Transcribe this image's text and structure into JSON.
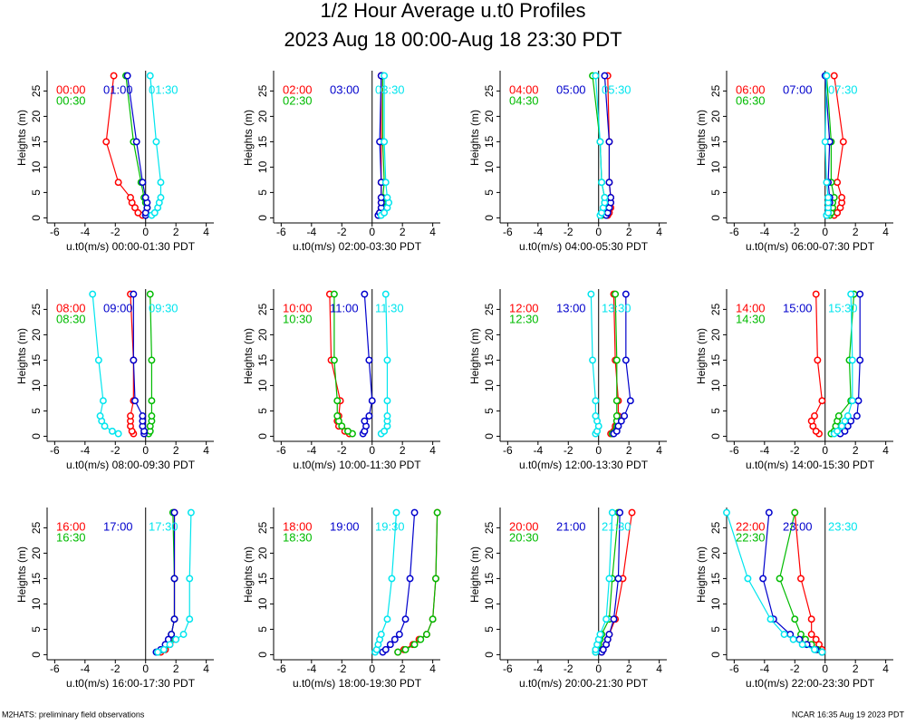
{
  "title": "1/2 Hour Average u.t0 Profiles",
  "subtitle": "2023 Aug 18 00:00-Aug 18 23:30 PDT",
  "footer_left": "M2HATS: preliminary field observations",
  "footer_right": "NCAR 16:35 Aug 19 2023 PDT",
  "chart_data": [
    {
      "type": "line",
      "xlabel": "u.t0(m/s) 00:00-01:30 PDT",
      "ylabel": "Heights (m)",
      "xlim": [
        -6.5,
        4.5
      ],
      "ylim": [
        -1,
        29
      ],
      "xticks": [
        -6,
        -4,
        -2,
        0,
        2,
        4
      ],
      "yticks": [
        0,
        5,
        10,
        15,
        20,
        25
      ],
      "y": [
        0.5,
        1,
        2,
        3,
        4,
        7,
        15,
        28
      ],
      "series": [
        {
          "name": "00:00",
          "color": "#ff0000",
          "x": [
            -0.2,
            -0.5,
            -0.7,
            -0.9,
            -1.0,
            -1.8,
            -2.6,
            -2.1
          ]
        },
        {
          "name": "00:30",
          "color": "#00bb00",
          "x": [
            0,
            0,
            0.1,
            0,
            -0.1,
            -0.3,
            -0.8,
            -1.3
          ]
        },
        {
          "name": "01:00",
          "color": "#0000cc",
          "x": [
            0,
            0,
            0.1,
            0.1,
            0,
            -0.2,
            -0.6,
            -1.2
          ]
        },
        {
          "name": "01:30",
          "color": "#00e5ee",
          "x": [
            0.4,
            0.6,
            0.8,
            0.9,
            1.0,
            1.0,
            0.7,
            0.3
          ]
        }
      ]
    },
    {
      "type": "line",
      "xlabel": "u.t0(m/s) 02:00-03:30 PDT",
      "ylabel": "Heights (m)",
      "xlim": [
        -6.5,
        4.5
      ],
      "ylim": [
        -1,
        29
      ],
      "xticks": [
        -6,
        -4,
        -2,
        0,
        2,
        4
      ],
      "yticks": [
        0,
        5,
        10,
        15,
        20,
        25
      ],
      "y": [
        0.5,
        1,
        2,
        3,
        4,
        7,
        15,
        28
      ],
      "series": [
        {
          "name": "02:00",
          "color": "#ff0000",
          "x": [
            0.4,
            0.5,
            0.6,
            0.6,
            0.6,
            0.6,
            0.6,
            0.6
          ]
        },
        {
          "name": "02:30",
          "color": "#00bb00",
          "x": [
            0.5,
            0.6,
            0.7,
            0.7,
            0.7,
            0.8,
            0.7,
            0.7
          ]
        },
        {
          "name": "03:00",
          "color": "#0000cc",
          "x": [
            0.4,
            0.5,
            0.6,
            0.6,
            0.6,
            0.6,
            0.5,
            0.6
          ]
        },
        {
          "name": "03:30",
          "color": "#00e5ee",
          "x": [
            0.6,
            0.8,
            1.0,
            1.1,
            1.0,
            0.9,
            0.8,
            0.8
          ]
        }
      ]
    },
    {
      "type": "line",
      "xlabel": "u.t0(m/s) 04:00-05:30 PDT",
      "ylabel": "Heights (m)",
      "xlim": [
        -6.5,
        4.5
      ],
      "ylim": [
        -1,
        29
      ],
      "xticks": [
        -6,
        -4,
        -2,
        0,
        2,
        4
      ],
      "yticks": [
        0,
        5,
        10,
        15,
        20,
        25
      ],
      "y": [
        0.5,
        1,
        2,
        3,
        4,
        7,
        15,
        28
      ],
      "series": [
        {
          "name": "04:00",
          "color": "#ff0000",
          "x": [
            0.6,
            0.7,
            0.8,
            0.8,
            0.8,
            0.7,
            0.7,
            0.6
          ]
        },
        {
          "name": "04:30",
          "color": "#00bb00",
          "x": [
            0.2,
            0.3,
            0.4,
            0.4,
            0.4,
            0.2,
            0.1,
            -0.4
          ]
        },
        {
          "name": "05:00",
          "color": "#0000cc",
          "x": [
            0.5,
            0.6,
            0.7,
            0.8,
            0.8,
            0.7,
            0.7,
            0.4
          ]
        },
        {
          "name": "05:30",
          "color": "#00e5ee",
          "x": [
            0.1,
            0.2,
            0.3,
            0.4,
            0.4,
            0.2,
            0.1,
            -0.2
          ]
        }
      ]
    },
    {
      "type": "line",
      "xlabel": "u.t0(m/s) 06:00-07:30 PDT",
      "ylabel": "Heights (m)",
      "xlim": [
        -6.5,
        4.5
      ],
      "ylim": [
        -1,
        29
      ],
      "xticks": [
        -6,
        -4,
        -2,
        0,
        2,
        4
      ],
      "yticks": [
        0,
        5,
        10,
        15,
        20,
        25
      ],
      "y": [
        0.5,
        1,
        2,
        3,
        4,
        7,
        15,
        28
      ],
      "series": [
        {
          "name": "06:00",
          "color": "#ff0000",
          "x": [
            0.6,
            0.8,
            1.0,
            1.1,
            1.1,
            0.8,
            1.2,
            0.6
          ]
        },
        {
          "name": "06:30",
          "color": "#00bb00",
          "x": [
            0.3,
            0.4,
            0.5,
            0.5,
            0.6,
            0.4,
            0.4,
            0.1
          ]
        },
        {
          "name": "07:00",
          "color": "#0000cc",
          "x": [
            0.1,
            0.2,
            0.2,
            0.3,
            0.3,
            0.2,
            0.3,
            0
          ]
        },
        {
          "name": "07:30",
          "color": "#00e5ee",
          "x": [
            0.1,
            0.2,
            0.2,
            0.2,
            0.2,
            0.1,
            0,
            0.1
          ]
        }
      ]
    },
    {
      "type": "line",
      "xlabel": "u.t0(m/s) 08:00-09:30 PDT",
      "ylabel": "Heights (m)",
      "xlim": [
        -6.5,
        4.5
      ],
      "ylim": [
        -1,
        29
      ],
      "xticks": [
        -6,
        -4,
        -2,
        0,
        2,
        4
      ],
      "yticks": [
        0,
        5,
        10,
        15,
        20,
        25
      ],
      "y": [
        0.5,
        1,
        2,
        3,
        4,
        7,
        15,
        28
      ],
      "series": [
        {
          "name": "08:00",
          "color": "#ff0000",
          "x": [
            -0.8,
            -0.9,
            -1.0,
            -1.0,
            -1.0,
            -0.8,
            -0.8,
            -1.0
          ]
        },
        {
          "name": "08:30",
          "color": "#00bb00",
          "x": [
            0.2,
            0.3,
            0.3,
            0.4,
            0.4,
            0.4,
            0.4,
            0.3
          ]
        },
        {
          "name": "09:00",
          "color": "#0000cc",
          "x": [
            -0.1,
            -0.1,
            -0.2,
            -0.2,
            -0.2,
            -0.7,
            -0.8,
            -0.8
          ]
        },
        {
          "name": "09:30",
          "color": "#00e5ee",
          "x": [
            -1.8,
            -2.2,
            -2.7,
            -2.9,
            -3.0,
            -2.8,
            -3.1,
            -3.5
          ]
        }
      ]
    },
    {
      "type": "line",
      "xlabel": "u.t0(m/s) 10:00-11:30 PDT",
      "ylabel": "Heights (m)",
      "xlim": [
        -6.5,
        4.5
      ],
      "ylim": [
        -1,
        29
      ],
      "xticks": [
        -6,
        -4,
        -2,
        0,
        2,
        4
      ],
      "yticks": [
        0,
        5,
        10,
        15,
        20,
        25
      ],
      "y": [
        0.5,
        1,
        2,
        3,
        4,
        7,
        15,
        28
      ],
      "series": [
        {
          "name": "10:00",
          "color": "#ff0000",
          "x": [
            -1.5,
            -1.8,
            -2.2,
            -2.3,
            -2.2,
            -2.1,
            -2.7,
            -2.8
          ]
        },
        {
          "name": "10:30",
          "color": "#00bb00",
          "x": [
            -1.3,
            -1.6,
            -2.0,
            -2.2,
            -2.3,
            -2.3,
            -2.5,
            -2.5
          ]
        },
        {
          "name": "11:00",
          "color": "#0000cc",
          "x": [
            -0.6,
            -0.5,
            -0.4,
            -0.5,
            -0.2,
            0,
            -0.2,
            -0.5
          ]
        },
        {
          "name": "11:30",
          "color": "#00e5ee",
          "x": [
            0.6,
            0.8,
            1.0,
            1.0,
            1.0,
            1.0,
            1.0,
            0.9
          ]
        }
      ]
    },
    {
      "type": "line",
      "xlabel": "u.t0(m/s) 12:00-13:30 PDT",
      "ylabel": "Heights (m)",
      "xlim": [
        -6.5,
        4.5
      ],
      "ylim": [
        -1,
        29
      ],
      "xticks": [
        -6,
        -4,
        -2,
        0,
        2,
        4
      ],
      "yticks": [
        0,
        5,
        10,
        15,
        20,
        25
      ],
      "y": [
        0.5,
        1,
        2,
        3,
        4,
        7,
        15,
        28
      ],
      "series": [
        {
          "name": "12:00",
          "color": "#ff0000",
          "x": [
            0.8,
            1.0,
            1.1,
            1.2,
            1.3,
            1.3,
            1.1,
            1.0
          ]
        },
        {
          "name": "12:30",
          "color": "#00bb00",
          "x": [
            0.9,
            1.1,
            1.2,
            1.2,
            1.2,
            1.2,
            1.2,
            1.1
          ]
        },
        {
          "name": "13:00",
          "color": "#0000cc",
          "x": [
            1.0,
            1.2,
            1.3,
            1.5,
            1.7,
            2.1,
            1.8,
            1.8
          ]
        },
        {
          "name": "13:30",
          "color": "#00e5ee",
          "x": [
            -0.2,
            -0.1,
            0,
            -0.1,
            -0.2,
            -0.2,
            -0.4,
            -0.5
          ]
        }
      ]
    },
    {
      "type": "line",
      "xlabel": "u.t0(m/s) 14:00-15:30 PDT",
      "ylabel": "Heights (m)",
      "xlim": [
        -6.5,
        4.5
      ],
      "ylim": [
        -1,
        29
      ],
      "xticks": [
        -6,
        -4,
        -2,
        0,
        2,
        4
      ],
      "yticks": [
        0,
        5,
        10,
        15,
        20,
        25
      ],
      "y": [
        0.5,
        1,
        2,
        3,
        4,
        7,
        15,
        28
      ],
      "series": [
        {
          "name": "14:00",
          "color": "#ff0000",
          "x": [
            -0.4,
            -0.6,
            -0.8,
            -0.9,
            -0.7,
            -0.2,
            -0.5,
            -0.6
          ]
        },
        {
          "name": "14:30",
          "color": "#00bb00",
          "x": [
            0.4,
            0.6,
            0.7,
            0.8,
            0.9,
            1.7,
            1.6,
            1.9
          ]
        },
        {
          "name": "15:00",
          "color": "#0000cc",
          "x": [
            1.0,
            1.3,
            1.5,
            1.7,
            2.1,
            2.2,
            2.3,
            2.3
          ]
        },
        {
          "name": "15:30",
          "color": "#00e5ee",
          "x": [
            0.6,
            0.8,
            1.1,
            1.3,
            1.5,
            1.8,
            1.8,
            1.7
          ]
        }
      ]
    },
    {
      "type": "line",
      "xlabel": "u.t0(m/s) 16:00-17:30 PDT",
      "ylabel": "Heights (m)",
      "xlim": [
        -6.5,
        4.5
      ],
      "ylim": [
        -1,
        29
      ],
      "xticks": [
        -6,
        -4,
        -2,
        0,
        2,
        4
      ],
      "yticks": [
        0,
        5,
        10,
        15,
        20,
        25
      ],
      "y": [
        0.5,
        1,
        2,
        3,
        4,
        7,
        15,
        28
      ],
      "series": [
        {
          "name": "16:00",
          "color": "#ff0000",
          "x": [
            1.0,
            1.3,
            1.6,
            1.8,
            1.7,
            1.9,
            1.9,
            1.9
          ]
        },
        {
          "name": "16:30",
          "color": "#00bb00",
          "x": [
            0.8,
            1.1,
            1.4,
            1.6,
            1.7,
            1.9,
            1.9,
            1.8
          ]
        },
        {
          "name": "17:00",
          "color": "#0000cc",
          "x": [
            0.7,
            1.0,
            1.3,
            1.5,
            1.7,
            1.9,
            1.9,
            1.9
          ]
        },
        {
          "name": "17:30",
          "color": "#00e5ee",
          "x": [
            0.8,
            1.2,
            1.6,
            2.0,
            2.5,
            2.9,
            2.9,
            3.0
          ]
        }
      ]
    },
    {
      "type": "line",
      "xlabel": "u.t0(m/s) 18:00-19:30 PDT",
      "ylabel": "Heights (m)",
      "xlim": [
        -6.5,
        4.5
      ],
      "ylim": [
        -1,
        29
      ],
      "xticks": [
        -6,
        -4,
        -2,
        0,
        2,
        4
      ],
      "yticks": [
        0,
        5,
        10,
        15,
        20,
        25
      ],
      "y": [
        0.5,
        1,
        2,
        3,
        4,
        7,
        15,
        28
      ],
      "series": [
        {
          "name": "18:00",
          "color": "#ff0000",
          "x": [
            1.7,
            2.1,
            2.7,
            3.1,
            3.6,
            4.0,
            4.2,
            4.3
          ]
        },
        {
          "name": "18:30",
          "color": "#00bb00",
          "x": [
            1.7,
            2.2,
            2.8,
            3.2,
            3.6,
            4.0,
            4.2,
            4.3
          ]
        },
        {
          "name": "19:00",
          "color": "#0000cc",
          "x": [
            0.7,
            0.9,
            1.2,
            1.5,
            1.8,
            2.2,
            2.5,
            2.8
          ]
        },
        {
          "name": "19:30",
          "color": "#00e5ee",
          "x": [
            0.2,
            0.3,
            0.4,
            0.5,
            0.6,
            1.0,
            1.3,
            1.6
          ]
        }
      ]
    },
    {
      "type": "line",
      "xlabel": "u.t0(m/s) 20:00-21:30 PDT",
      "ylabel": "Heights (m)",
      "xlim": [
        -6.5,
        4.5
      ],
      "ylim": [
        -1,
        29
      ],
      "xticks": [
        -6,
        -4,
        -2,
        0,
        2,
        4
      ],
      "yticks": [
        0,
        5,
        10,
        15,
        20,
        25
      ],
      "y": [
        0.5,
        1,
        2,
        3,
        4,
        7,
        15,
        28
      ],
      "series": [
        {
          "name": "20:00",
          "color": "#ff0000",
          "x": [
            0.2,
            0.3,
            0.5,
            0.6,
            0.7,
            1.1,
            1.6,
            2.2
          ]
        },
        {
          "name": "20:30",
          "color": "#00bb00",
          "x": [
            -0.2,
            -0.1,
            0,
            0.1,
            0.2,
            0.7,
            0.9,
            1.3
          ]
        },
        {
          "name": "21:00",
          "color": "#0000cc",
          "x": [
            0.2,
            0.3,
            0.5,
            0.6,
            0.7,
            1.0,
            1.3,
            1.4
          ]
        },
        {
          "name": "21:30",
          "color": "#00e5ee",
          "x": [
            -0.2,
            -0.2,
            -0.1,
            0,
            0.1,
            0.5,
            0.7,
            0.9
          ]
        }
      ]
    },
    {
      "type": "line",
      "xlabel": "u.t0(m/s) 22:00-23:30 PDT",
      "ylabel": "Heights (m)",
      "xlim": [
        -6.5,
        4.5
      ],
      "ylim": [
        -1,
        29
      ],
      "xticks": [
        -6,
        -4,
        -2,
        0,
        2,
        4
      ],
      "yticks": [
        0,
        5,
        10,
        15,
        20,
        25
      ],
      "y": [
        0.5,
        1,
        2,
        3,
        4,
        7,
        15,
        28
      ],
      "series": [
        {
          "name": "22:00",
          "color": "#ff0000",
          "x": [
            -0.2,
            -0.2,
            -0.4,
            -0.6,
            -0.9,
            -0.9,
            -1.6,
            -2.0
          ]
        },
        {
          "name": "22:30",
          "color": "#00bb00",
          "x": [
            -0.2,
            -0.5,
            -0.9,
            -1.3,
            -1.6,
            -2.0,
            -3.0,
            -2.0
          ]
        },
        {
          "name": "23:00",
          "color": "#0000cc",
          "x": [
            -0.2,
            -0.6,
            -1.2,
            -1.7,
            -2.3,
            -3.4,
            -4.1,
            -3.7
          ]
        },
        {
          "name": "23:30",
          "color": "#00e5ee",
          "x": [
            -0.2,
            -0.7,
            -1.5,
            -2.1,
            -2.7,
            -3.6,
            -5.1,
            -6.5
          ]
        }
      ]
    }
  ]
}
